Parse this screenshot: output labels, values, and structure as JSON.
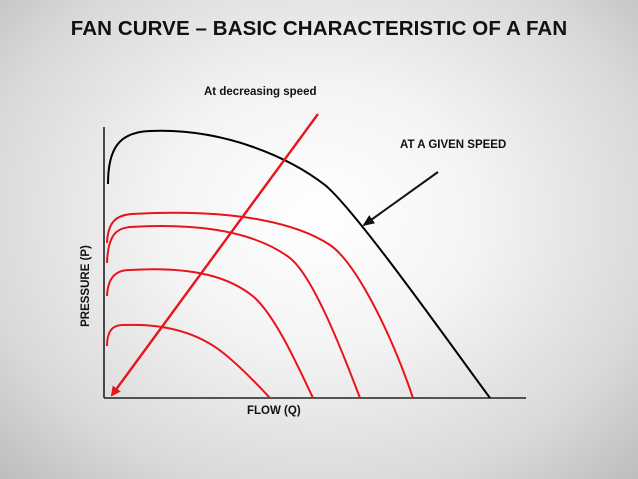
{
  "title": "FAN CURVE – BASIC CHARACTERISTIC OF A FAN",
  "labels": {
    "decreasing_speed": "At decreasing speed",
    "given_speed": "AT A GIVEN SPEED",
    "x_axis": "FLOW (Q)",
    "y_axis": "PRESSURE (P)"
  },
  "colors": {
    "given_speed_curve": "#000000",
    "reduced_speed_curves": "#e8141b",
    "speed_arrow": "#e8141b",
    "axes": "#222222"
  },
  "icons": {
    "annotation_pointer": "arrow-pointer-icon",
    "speed_trend": "diagonal-arrow-icon"
  }
}
